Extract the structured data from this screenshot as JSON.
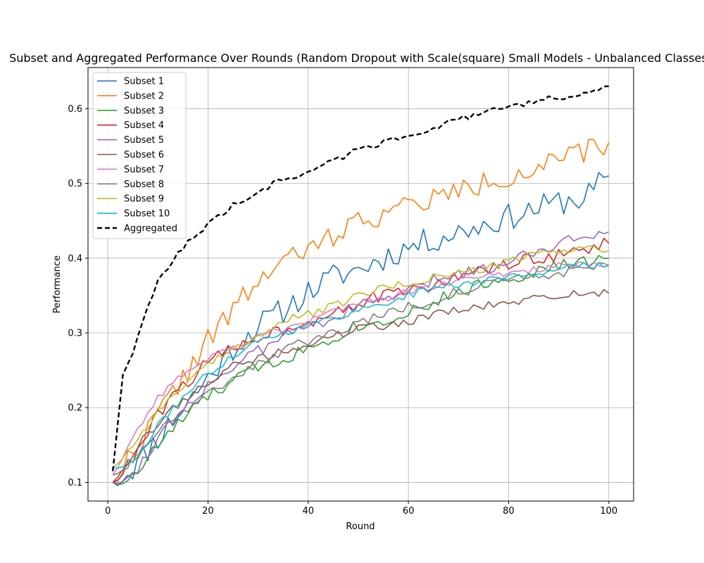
{
  "chart_data": {
    "type": "line",
    "title": "Subset and Aggregated Performance Over Rounds (Random Dropout with Scale(square) Small Models - Unbalanced Classes)",
    "xlabel": "Round",
    "ylabel": "Performance",
    "xlim": [
      -3.95,
      104.95
    ],
    "ylim": [
      0.075,
      0.655
    ],
    "xticks": [
      0,
      20,
      40,
      60,
      80,
      100
    ],
    "yticks": [
      0.1,
      0.2,
      0.3,
      0.4,
      0.5,
      0.6
    ],
    "ytick_labels": [
      "0.1",
      "0.2",
      "0.3",
      "0.4",
      "0.5",
      "0.6"
    ],
    "grid": true,
    "legend_position": "top-left",
    "series": [
      {
        "name": "Subset 1",
        "color": "#1f77b4",
        "style": "solid",
        "anchors": [
          [
            1,
            0.1
          ],
          [
            5,
            0.12
          ],
          [
            10,
            0.16
          ],
          [
            15,
            0.2
          ],
          [
            20,
            0.24
          ],
          [
            25,
            0.28
          ],
          [
            30,
            0.31
          ],
          [
            35,
            0.33
          ],
          [
            40,
            0.355
          ],
          [
            45,
            0.375
          ],
          [
            50,
            0.385
          ],
          [
            55,
            0.4
          ],
          [
            60,
            0.415
          ],
          [
            65,
            0.425
          ],
          [
            70,
            0.435
          ],
          [
            75,
            0.445
          ],
          [
            80,
            0.455
          ],
          [
            85,
            0.465
          ],
          [
            90,
            0.475
          ],
          [
            95,
            0.48
          ],
          [
            100,
            0.51
          ]
        ],
        "noise": 0.018,
        "seed": 11
      },
      {
        "name": "Subset 2",
        "color": "#ff7f0e",
        "style": "solid",
        "anchors": [
          [
            1,
            0.1
          ],
          [
            5,
            0.14
          ],
          [
            10,
            0.19
          ],
          [
            15,
            0.24
          ],
          [
            20,
            0.29
          ],
          [
            25,
            0.33
          ],
          [
            30,
            0.37
          ],
          [
            35,
            0.395
          ],
          [
            40,
            0.41
          ],
          [
            45,
            0.43
          ],
          [
            50,
            0.45
          ],
          [
            55,
            0.46
          ],
          [
            60,
            0.47
          ],
          [
            65,
            0.48
          ],
          [
            70,
            0.49
          ],
          [
            75,
            0.5
          ],
          [
            80,
            0.51
          ],
          [
            85,
            0.52
          ],
          [
            90,
            0.53
          ],
          [
            95,
            0.54
          ],
          [
            100,
            0.555
          ]
        ],
        "noise": 0.016,
        "seed": 22
      },
      {
        "name": "Subset 3",
        "color": "#2ca02c",
        "style": "solid",
        "anchors": [
          [
            1,
            0.1
          ],
          [
            5,
            0.105
          ],
          [
            10,
            0.15
          ],
          [
            15,
            0.185
          ],
          [
            20,
            0.215
          ],
          [
            25,
            0.235
          ],
          [
            30,
            0.255
          ],
          [
            35,
            0.265
          ],
          [
            40,
            0.28
          ],
          [
            45,
            0.295
          ],
          [
            50,
            0.31
          ],
          [
            55,
            0.315
          ],
          [
            60,
            0.33
          ],
          [
            65,
            0.34
          ],
          [
            70,
            0.355
          ],
          [
            75,
            0.365
          ],
          [
            80,
            0.375
          ],
          [
            85,
            0.38
          ],
          [
            90,
            0.39
          ],
          [
            95,
            0.395
          ],
          [
            100,
            0.4
          ]
        ],
        "noise": 0.009,
        "seed": 33
      },
      {
        "name": "Subset 4",
        "color": "#d62728",
        "style": "solid",
        "anchors": [
          [
            1,
            0.1
          ],
          [
            5,
            0.13
          ],
          [
            10,
            0.19
          ],
          [
            15,
            0.23
          ],
          [
            20,
            0.26
          ],
          [
            25,
            0.28
          ],
          [
            30,
            0.295
          ],
          [
            35,
            0.305
          ],
          [
            40,
            0.315
          ],
          [
            45,
            0.33
          ],
          [
            50,
            0.34
          ],
          [
            55,
            0.35
          ],
          [
            60,
            0.355
          ],
          [
            65,
            0.365
          ],
          [
            70,
            0.375
          ],
          [
            75,
            0.385
          ],
          [
            80,
            0.39
          ],
          [
            85,
            0.4
          ],
          [
            90,
            0.405
          ],
          [
            95,
            0.41
          ],
          [
            100,
            0.42
          ]
        ],
        "noise": 0.009,
        "seed": 44
      },
      {
        "name": "Subset 5",
        "color": "#9467bd",
        "style": "solid",
        "anchors": [
          [
            1,
            0.1
          ],
          [
            5,
            0.11
          ],
          [
            10,
            0.16
          ],
          [
            15,
            0.2
          ],
          [
            20,
            0.23
          ],
          [
            25,
            0.255
          ],
          [
            30,
            0.275
          ],
          [
            35,
            0.295
          ],
          [
            40,
            0.31
          ],
          [
            45,
            0.32
          ],
          [
            50,
            0.335
          ],
          [
            55,
            0.345
          ],
          [
            60,
            0.355
          ],
          [
            65,
            0.37
          ],
          [
            70,
            0.38
          ],
          [
            75,
            0.385
          ],
          [
            80,
            0.395
          ],
          [
            85,
            0.41
          ],
          [
            90,
            0.42
          ],
          [
            95,
            0.43
          ],
          [
            100,
            0.435
          ]
        ],
        "noise": 0.008,
        "seed": 55
      },
      {
        "name": "Subset 6",
        "color": "#8c564b",
        "style": "solid",
        "anchors": [
          [
            1,
            0.1
          ],
          [
            5,
            0.14
          ],
          [
            10,
            0.18
          ],
          [
            15,
            0.21
          ],
          [
            20,
            0.235
          ],
          [
            25,
            0.255
          ],
          [
            30,
            0.265
          ],
          [
            35,
            0.275
          ],
          [
            40,
            0.285
          ],
          [
            45,
            0.295
          ],
          [
            50,
            0.305
          ],
          [
            55,
            0.31
          ],
          [
            60,
            0.315
          ],
          [
            65,
            0.325
          ],
          [
            70,
            0.33
          ],
          [
            75,
            0.335
          ],
          [
            80,
            0.34
          ],
          [
            85,
            0.345
          ],
          [
            90,
            0.35
          ],
          [
            95,
            0.355
          ],
          [
            100,
            0.353
          ]
        ],
        "noise": 0.006,
        "seed": 66
      },
      {
        "name": "Subset 7",
        "color": "#e377c2",
        "style": "solid",
        "anchors": [
          [
            1,
            0.11
          ],
          [
            5,
            0.16
          ],
          [
            10,
            0.215
          ],
          [
            15,
            0.245
          ],
          [
            20,
            0.265
          ],
          [
            25,
            0.28
          ],
          [
            30,
            0.295
          ],
          [
            35,
            0.305
          ],
          [
            40,
            0.315
          ],
          [
            45,
            0.33
          ],
          [
            50,
            0.34
          ],
          [
            55,
            0.345
          ],
          [
            60,
            0.355
          ],
          [
            65,
            0.36
          ],
          [
            70,
            0.37
          ],
          [
            75,
            0.375
          ],
          [
            80,
            0.38
          ],
          [
            85,
            0.385
          ],
          [
            90,
            0.39
          ],
          [
            95,
            0.39
          ],
          [
            100,
            0.39
          ]
        ],
        "noise": 0.005,
        "seed": 77
      },
      {
        "name": "Subset 8",
        "color": "#7f7f7f",
        "style": "solid",
        "anchors": [
          [
            1,
            0.11
          ],
          [
            5,
            0.13
          ],
          [
            10,
            0.17
          ],
          [
            15,
            0.195
          ],
          [
            20,
            0.22
          ],
          [
            25,
            0.24
          ],
          [
            30,
            0.26
          ],
          [
            35,
            0.275
          ],
          [
            40,
            0.29
          ],
          [
            45,
            0.3
          ],
          [
            50,
            0.315
          ],
          [
            55,
            0.325
          ],
          [
            60,
            0.335
          ],
          [
            65,
            0.345
          ],
          [
            70,
            0.355
          ],
          [
            75,
            0.365
          ],
          [
            80,
            0.37
          ],
          [
            85,
            0.375
          ],
          [
            90,
            0.38
          ],
          [
            95,
            0.385
          ],
          [
            100,
            0.39
          ]
        ],
        "noise": 0.007,
        "seed": 88
      },
      {
        "name": "Subset 9",
        "color": "#bcbd22",
        "style": "solid",
        "anchors": [
          [
            1,
            0.12
          ],
          [
            5,
            0.15
          ],
          [
            10,
            0.195
          ],
          [
            15,
            0.23
          ],
          [
            20,
            0.255
          ],
          [
            25,
            0.28
          ],
          [
            30,
            0.295
          ],
          [
            35,
            0.315
          ],
          [
            40,
            0.325
          ],
          [
            45,
            0.335
          ],
          [
            50,
            0.35
          ],
          [
            55,
            0.36
          ],
          [
            60,
            0.365
          ],
          [
            65,
            0.375
          ],
          [
            70,
            0.38
          ],
          [
            75,
            0.385
          ],
          [
            80,
            0.395
          ],
          [
            85,
            0.405
          ],
          [
            90,
            0.41
          ],
          [
            95,
            0.415
          ],
          [
            100,
            0.41
          ]
        ],
        "noise": 0.006,
        "seed": 99
      },
      {
        "name": "Subset 10",
        "color": "#17becf",
        "style": "solid",
        "anchors": [
          [
            1,
            0.12
          ],
          [
            5,
            0.125
          ],
          [
            10,
            0.175
          ],
          [
            15,
            0.215
          ],
          [
            20,
            0.245
          ],
          [
            25,
            0.27
          ],
          [
            30,
            0.29
          ],
          [
            35,
            0.3
          ],
          [
            40,
            0.31
          ],
          [
            45,
            0.32
          ],
          [
            50,
            0.33
          ],
          [
            55,
            0.34
          ],
          [
            60,
            0.35
          ],
          [
            65,
            0.36
          ],
          [
            70,
            0.365
          ],
          [
            75,
            0.37
          ],
          [
            80,
            0.375
          ],
          [
            85,
            0.38
          ],
          [
            90,
            0.385
          ],
          [
            95,
            0.39
          ],
          [
            100,
            0.39
          ]
        ],
        "noise": 0.005,
        "seed": 111
      },
      {
        "name": "Aggregated",
        "color": "#000000",
        "style": "dashed",
        "anchors": [
          [
            1,
            0.115
          ],
          [
            3,
            0.245
          ],
          [
            5,
            0.275
          ],
          [
            10,
            0.37
          ],
          [
            15,
            0.415
          ],
          [
            20,
            0.445
          ],
          [
            25,
            0.47
          ],
          [
            30,
            0.49
          ],
          [
            35,
            0.505
          ],
          [
            40,
            0.515
          ],
          [
            45,
            0.53
          ],
          [
            50,
            0.545
          ],
          [
            55,
            0.555
          ],
          [
            60,
            0.565
          ],
          [
            65,
            0.575
          ],
          [
            70,
            0.585
          ],
          [
            75,
            0.595
          ],
          [
            80,
            0.6
          ],
          [
            85,
            0.61
          ],
          [
            90,
            0.615
          ],
          [
            95,
            0.62
          ],
          [
            100,
            0.63
          ]
        ],
        "noise": 0.004,
        "seed": 122
      }
    ]
  }
}
